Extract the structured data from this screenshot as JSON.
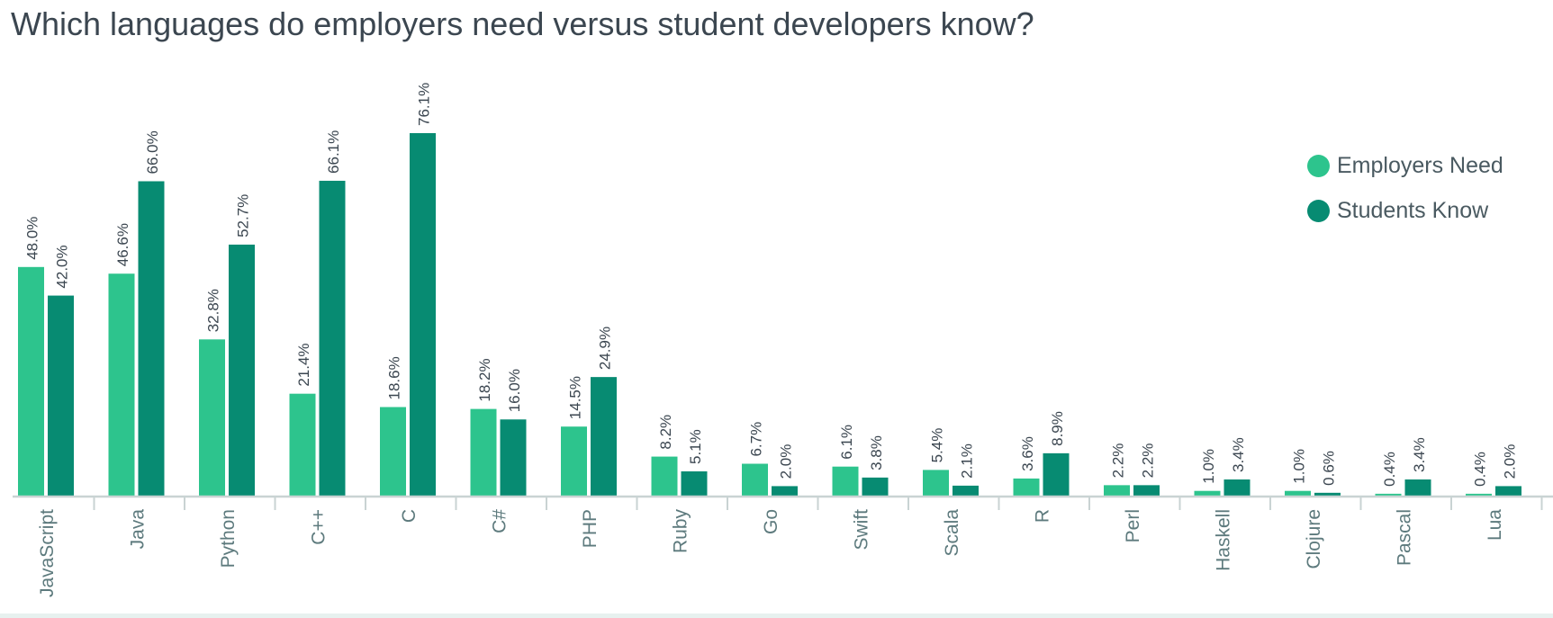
{
  "title": "Which languages do employers need versus student developers know?",
  "colors": {
    "employers": "#2dc48d",
    "students": "#078b72",
    "axis": "#c9d3d3",
    "tick_label": "#5d7a7d",
    "value_label": "#3b4650"
  },
  "chart_data": {
    "type": "bar",
    "title": "Which languages do employers need versus student developers know?",
    "xlabel": "",
    "ylabel": "",
    "ylim": [
      0,
      80
    ],
    "grid": false,
    "legend_position": "top-right",
    "categories": [
      "JavaScript",
      "Java",
      "Python",
      "C++",
      "C",
      "C#",
      "PHP",
      "Ruby",
      "Go",
      "Swift",
      "Scala",
      "R",
      "Perl",
      "Haskell",
      "Clojure",
      "Pascal",
      "Lua"
    ],
    "series": [
      {
        "name": "Employers Need",
        "values": [
          48.0,
          46.6,
          32.8,
          21.4,
          18.6,
          18.2,
          14.5,
          8.2,
          6.7,
          6.1,
          5.4,
          3.6,
          2.2,
          1.0,
          1.0,
          0.4,
          0.4
        ],
        "labels": [
          "48.0%",
          "46.6%",
          "32.8%",
          "21.4%",
          "18.6%",
          "18.2%",
          "14.5%",
          "8.2%",
          "6.7%",
          "6.1%",
          "5.4%",
          "3.6%",
          "2.2%",
          "1.0%",
          "1.0%",
          "0.4%",
          "0.4%"
        ]
      },
      {
        "name": "Students Know",
        "values": [
          42.0,
          66.0,
          52.7,
          66.1,
          76.1,
          16.0,
          24.9,
          5.1,
          2.0,
          3.8,
          2.1,
          8.9,
          2.2,
          3.4,
          0.6,
          3.4,
          2.0
        ],
        "labels": [
          "42.0%",
          "66.0%",
          "52.7%",
          "66.1%",
          "76.1%",
          "16.0%",
          "24.9%",
          "5.1%",
          "2.0%",
          "3.8%",
          "2.1%",
          "8.9%",
          "2.2%",
          "3.4%",
          "0.6%",
          "3.4%",
          "2.0%"
        ]
      }
    ]
  }
}
